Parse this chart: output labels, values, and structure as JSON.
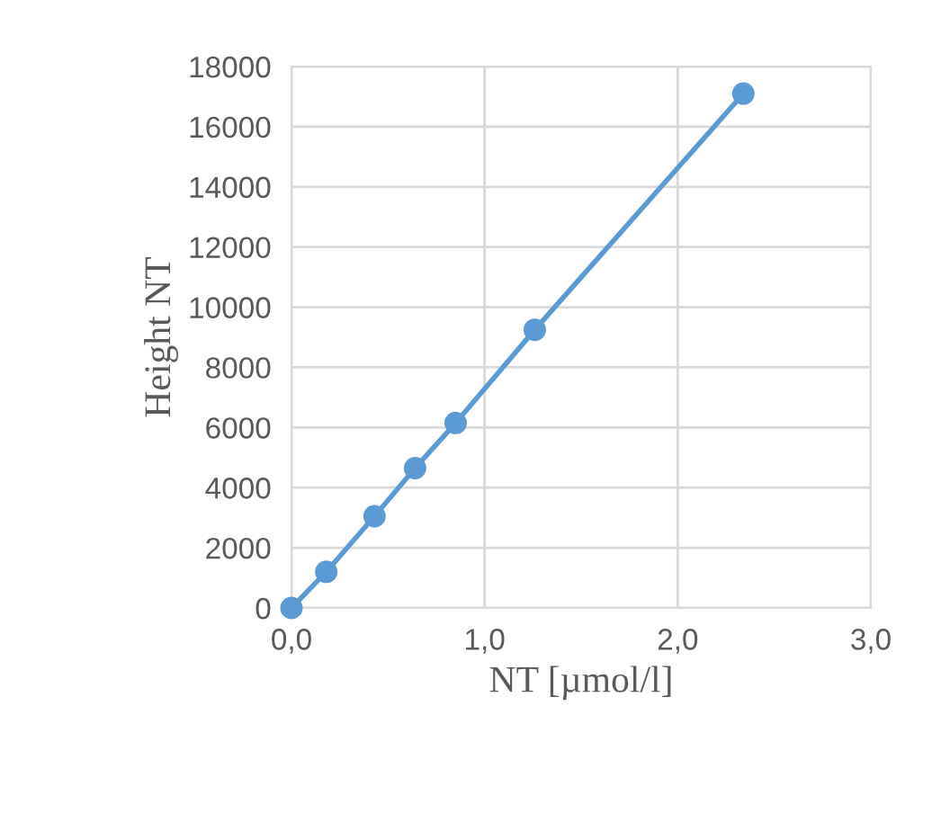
{
  "chart_data": {
    "type": "line",
    "xlabel": "NT [µmol/l]",
    "ylabel": "Height NT",
    "x": [
      0,
      0.18,
      0.43,
      0.64,
      0.85,
      1.26,
      2.34
    ],
    "series": [
      {
        "color": "#5b9bd5",
        "values": [
          0,
          1200,
          3050,
          4650,
          6150,
          9250,
          17100
        ]
      }
    ],
    "xlim": [
      0,
      3
    ],
    "xticks": [
      {
        "value": 0,
        "label": "0,0"
      },
      {
        "value": 1,
        "label": "1,0"
      },
      {
        "value": 2,
        "label": "2,0"
      },
      {
        "value": 3,
        "label": "3,0"
      }
    ],
    "ylim": [
      0,
      18000
    ],
    "yticks": [
      0,
      2000,
      4000,
      6000,
      8000,
      10000,
      12000,
      14000,
      16000,
      18000
    ],
    "grid": true,
    "marker": "circle",
    "line_style": "solid",
    "legend": false
  }
}
